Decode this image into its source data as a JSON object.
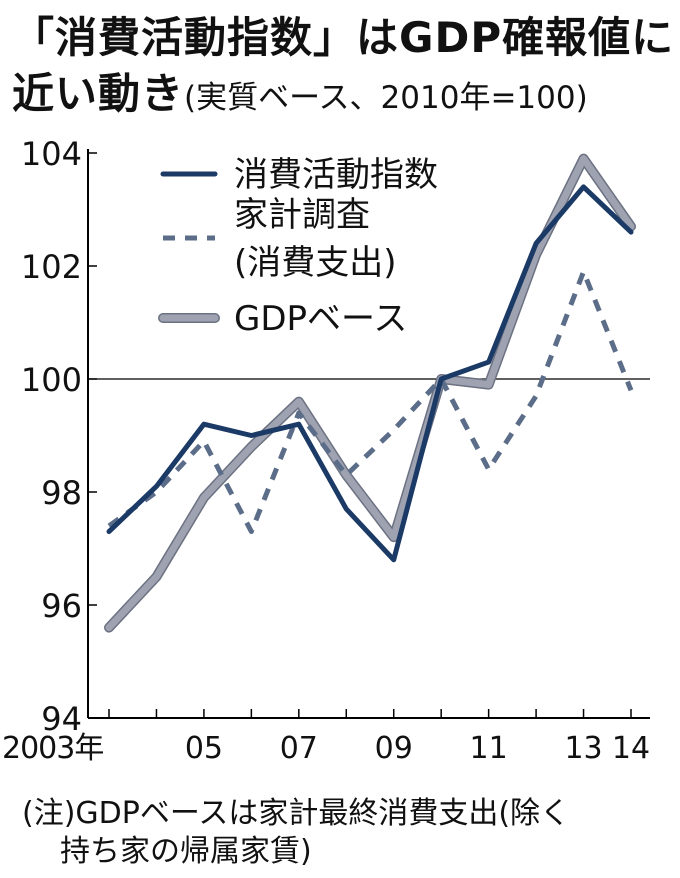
{
  "title": {
    "line1": "「消費活動指数」はGDP確報値に",
    "line2": "近い動き",
    "line2_sub": "(実質ベース、2010年=100)"
  },
  "note": {
    "line1": "(注)GDPベースは家計最終消費支出(除く",
    "line2": "持ち家の帰属家賃)"
  },
  "chart_data": {
    "type": "line",
    "title": "「消費活動指数」はGDP確報値に近い動き(実質ベース、2010年=100)",
    "x": [
      2003,
      2004,
      2005,
      2006,
      2007,
      2008,
      2009,
      2010,
      2011,
      2012,
      2013,
      2014
    ],
    "xtick_values": [
      2003,
      2005,
      2007,
      2009,
      2011,
      2013,
      2014
    ],
    "xtick_labels": [
      "2003年",
      "05",
      "07",
      "09",
      "11",
      "13",
      "14"
    ],
    "ylim": [
      94,
      104
    ],
    "yticks": [
      94,
      96,
      98,
      100,
      102,
      104
    ],
    "reference_line": 100,
    "xlabel": "",
    "ylabel": "",
    "series": [
      {
        "name": "GDPベース",
        "style": "gdp",
        "values": [
          95.6,
          96.5,
          97.9,
          98.8,
          99.6,
          98.3,
          97.2,
          100.0,
          99.9,
          102.2,
          103.9,
          102.7
        ]
      },
      {
        "name": "家計調査(消費支出)",
        "label_lines": [
          "家計調査",
          "(消費支出)"
        ],
        "style": "survey",
        "values": [
          97.4,
          98.0,
          98.9,
          97.3,
          99.4,
          98.3,
          99.1,
          100.0,
          98.4,
          99.7,
          101.9,
          99.8
        ]
      },
      {
        "name": "消費活動指数",
        "style": "index",
        "values": [
          97.3,
          98.1,
          99.2,
          99.0,
          99.2,
          97.7,
          96.8,
          100.0,
          100.3,
          102.4,
          103.4,
          102.6
        ]
      }
    ],
    "legend_order": [
      2,
      1,
      0
    ],
    "legend_position": "top-left"
  },
  "colors": {
    "index": "#1b3a66",
    "survey": "#5b6d88",
    "gdp": "#9ea2b1",
    "gdp_border": "#6c7282",
    "axis": "#000000"
  }
}
